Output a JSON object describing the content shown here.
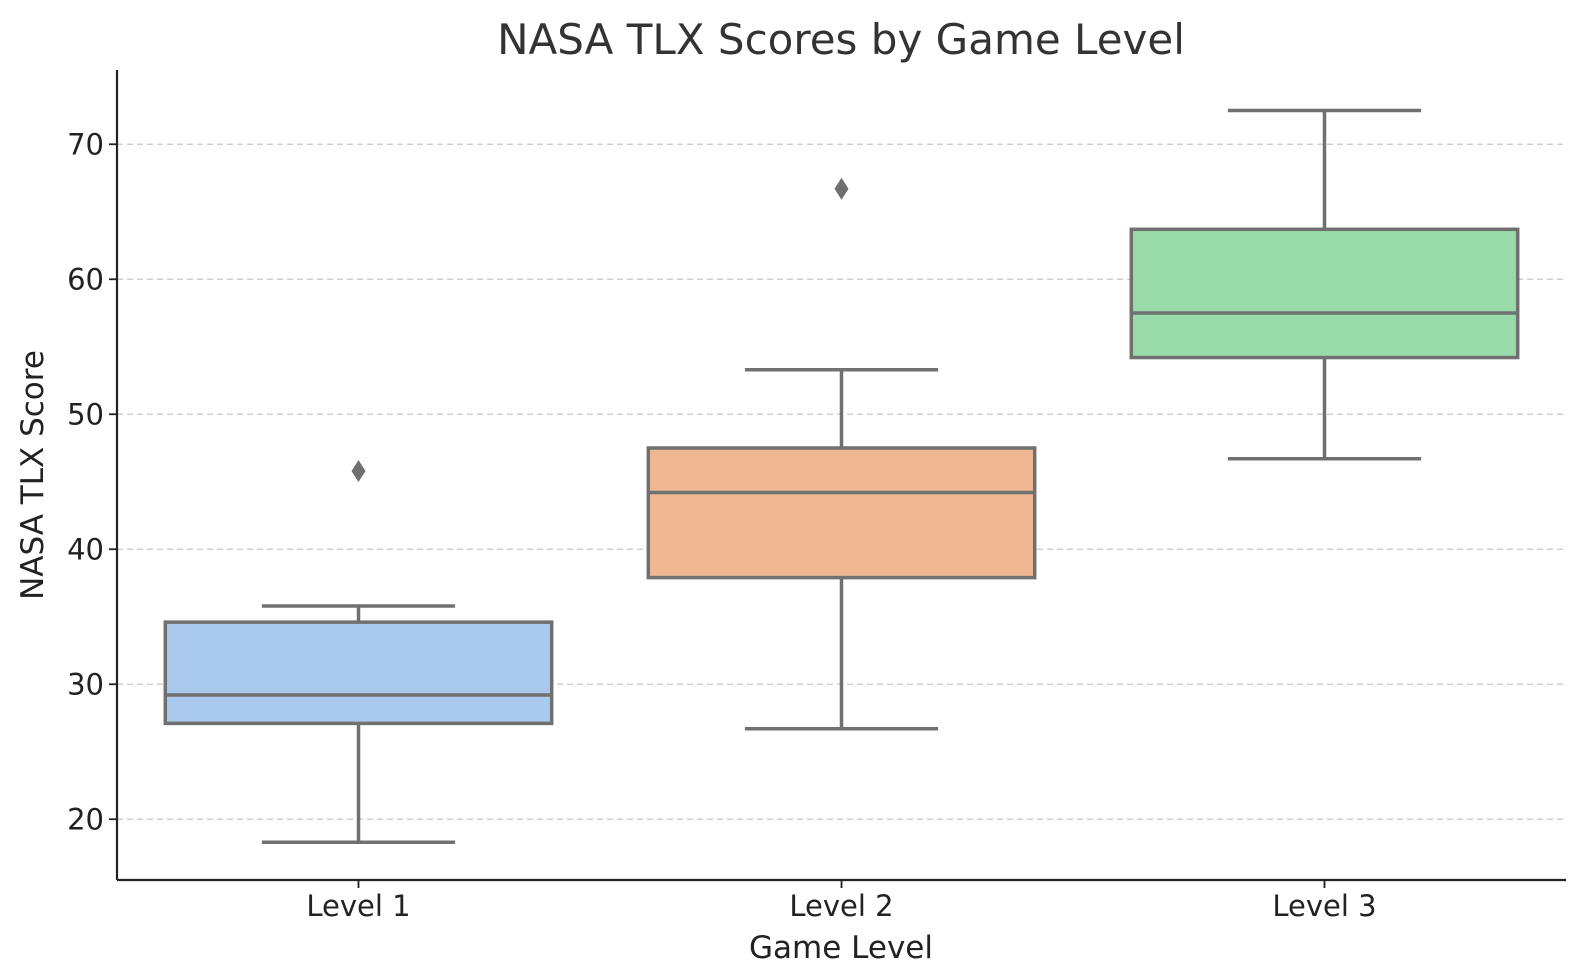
{
  "chart_data": {
    "type": "box",
    "title": "NASA TLX Scores by Game Level",
    "xlabel": "Game Level",
    "ylabel": "NASA TLX Score",
    "ylim": [
      15.5,
      75.5
    ],
    "yticks": [
      20,
      30,
      40,
      50,
      60,
      70
    ],
    "grid": "horizontal dashed",
    "categories": [
      "Level 1",
      "Level 2",
      "Level 3"
    ],
    "boxes": [
      {
        "category": "Level 1",
        "whisker_low": 18.3,
        "q1": 27.1,
        "median": 29.2,
        "q3": 34.6,
        "whisker_high": 35.8,
        "outliers": [
          45.8
        ],
        "color": "#a8c8ec"
      },
      {
        "category": "Level 2",
        "whisker_low": 26.7,
        "q1": 37.9,
        "median": 44.2,
        "q3": 47.5,
        "whisker_high": 53.3,
        "outliers": [
          66.7
        ],
        "color": "#f0b892"
      },
      {
        "category": "Level 3",
        "whisker_low": 46.7,
        "q1": 54.2,
        "median": 57.5,
        "q3": 63.7,
        "whisker_high": 72.5,
        "outliers": [],
        "color": "#98dba8"
      }
    ]
  }
}
